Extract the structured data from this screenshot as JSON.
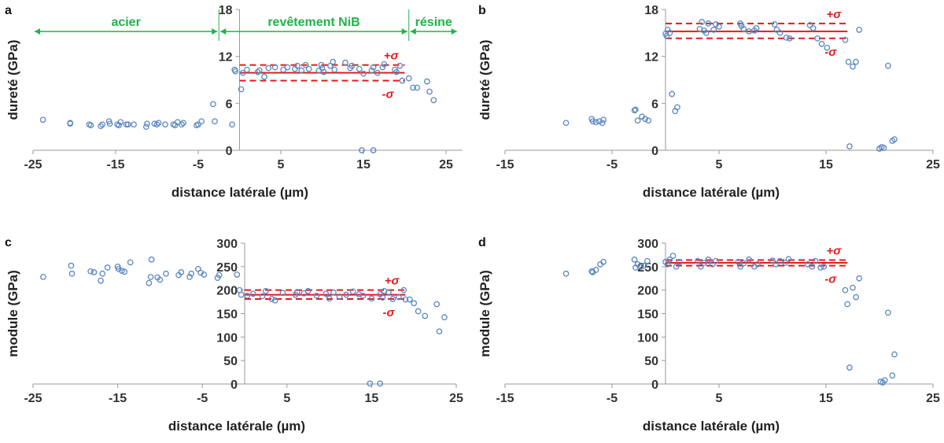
{
  "colors": {
    "points": "#5b87c0",
    "mean_line": "#e31a1c",
    "sigma_line": "#e31a1c",
    "sigma_text": "#e31a1c",
    "region": "#22b14c",
    "axis": "#9a9a9a"
  },
  "chart_data": [
    {
      "panel": "a",
      "type": "scatter",
      "xlabel": "distance latérale (µm)",
      "ylabel": "dureté (GPa)",
      "xlim": [
        -25,
        27
      ],
      "xticks": [
        -25,
        -15,
        -5,
        5,
        15,
        25
      ],
      "ylim": [
        0,
        18
      ],
      "yticks": [
        0,
        6,
        12,
        18
      ],
      "mean": 9.9,
      "plus_sigma": 10.9,
      "minus_sigma": 8.9,
      "band_x": [
        0,
        20
      ],
      "plus_label": "+σ",
      "minus_label": "-σ",
      "regions": [
        {
          "label": "acier",
          "from": -25,
          "to": -2.5
        },
        {
          "label": "revêtement NiB",
          "from": -2.5,
          "to": 20.5
        },
        {
          "label": "résine",
          "from": 20.5,
          "to": 26.5
        }
      ],
      "region_dividers": [
        -2.5,
        20.5
      ],
      "x": [
        -23.8,
        -20.5,
        -20.5,
        -18.2,
        -18.0,
        -16.8,
        -16.6,
        -15.8,
        -15.7,
        -14.8,
        -14.6,
        -14.4,
        -13.7,
        -13.5,
        -12.8,
        -11.3,
        -11.2,
        -10.3,
        -10.0,
        -9.8,
        -9.0,
        -8.0,
        -7.8,
        -7.5,
        -7.0,
        -6.8,
        -5.2,
        -5.0,
        -4.6,
        -3.2,
        -3.0,
        -0.9,
        -0.6,
        -0.5,
        0.2,
        0.4,
        0.9,
        2.2,
        2.4,
        3.0,
        3.5,
        4.3,
        5.3,
        5.8,
        6.7,
        7.0,
        7.5,
        8.0,
        8.4,
        9.6,
        9.9,
        10.0,
        10.2,
        11.0,
        11.3,
        11.5,
        12.8,
        13.4,
        13.6,
        14.5,
        15.0,
        16.0,
        16.2,
        16.7,
        17.3,
        17.5,
        18.8,
        19.0,
        19.4,
        19.7,
        20.5,
        21.0,
        21.5,
        22.7,
        23.0,
        23.5,
        14.8,
        16.2
      ],
      "y": [
        3.9,
        3.5,
        3.4,
        3.3,
        3.2,
        3.1,
        3.3,
        3.7,
        3.4,
        3.3,
        3.2,
        3.6,
        3.3,
        3.3,
        3.3,
        3.0,
        3.4,
        3.4,
        3.3,
        3.5,
        3.3,
        3.3,
        3.2,
        3.6,
        3.3,
        3.5,
        3.2,
        3.3,
        3.7,
        5.9,
        3.7,
        3.3,
        10.3,
        10.1,
        7.8,
        9.9,
        10.3,
        10.0,
        10.2,
        9.4,
        10.5,
        10.6,
        10.3,
        10.6,
        10.4,
        10.8,
        10.2,
        10.9,
        10.4,
        10.2,
        10.9,
        10.5,
        10.0,
        10.8,
        11.3,
        10.3,
        11.2,
        10.5,
        10.8,
        10.4,
        9.8,
        10.2,
        10.6,
        9.9,
        10.6,
        11.0,
        10.3,
        10.0,
        10.8,
        8.9,
        9.2,
        8.0,
        8.0,
        8.8,
        7.5,
        6.4,
        0.0,
        0.0
      ]
    },
    {
      "panel": "b",
      "type": "scatter",
      "xlabel": "distance latérale (µm)",
      "ylabel": "dureté (GPa)",
      "xlim": [
        -15,
        25
      ],
      "xticks": [
        -15,
        -5,
        5,
        15,
        25
      ],
      "ylim": [
        0,
        18
      ],
      "yticks": [
        0,
        6,
        12,
        18
      ],
      "mean": 15.2,
      "plus_sigma": 16.2,
      "minus_sigma": 14.3,
      "band_x": [
        0,
        17
      ],
      "plus_label": "+σ",
      "minus_label": "-σ",
      "x": [
        -9.3,
        -6.9,
        -6.8,
        -6.5,
        -6.2,
        -5.9,
        -5.8,
        -2.9,
        -2.8,
        -2.6,
        -2.2,
        -1.9,
        -1.6,
        0.0,
        0.1,
        0.2,
        0.4,
        0.6,
        0.9,
        1.1,
        3.2,
        3.4,
        3.6,
        3.8,
        4.0,
        4.5,
        4.7,
        5.0,
        7.0,
        7.1,
        7.3,
        7.8,
        8.3,
        8.5,
        10.2,
        10.4,
        10.7,
        11.3,
        11.6,
        13.5,
        13.8,
        14.2,
        14.6,
        15.1,
        16.8,
        17.1,
        17.2,
        17.5,
        17.8,
        18.1,
        20.0,
        20.2,
        20.4,
        20.8,
        21.2,
        21.4
      ],
      "y": [
        3.5,
        4.0,
        3.7,
        3.6,
        3.7,
        3.5,
        3.9,
        5.1,
        5.2,
        3.8,
        4.3,
        4.0,
        3.8,
        14.9,
        14.6,
        15.4,
        15.0,
        7.2,
        5.0,
        5.5,
        15.5,
        16.4,
        15.3,
        15.0,
        16.2,
        15.4,
        16.1,
        15.8,
        16.2,
        15.9,
        15.5,
        15.2,
        15.3,
        15.6,
        16.1,
        15.4,
        15.0,
        14.4,
        14.3,
        16.0,
        15.6,
        14.3,
        13.6,
        13.1,
        14.1,
        11.3,
        0.5,
        10.7,
        11.3,
        15.4,
        0.2,
        0.4,
        0.3,
        10.8,
        1.2,
        1.4
      ]
    },
    {
      "panel": "c",
      "type": "scatter",
      "xlabel": "distance latérale (µm)",
      "ylabel": "module (GPa)",
      "xlim": [
        -25,
        25
      ],
      "xticks": [
        -25,
        -15,
        -5,
        5,
        15,
        25
      ],
      "ylim": [
        0,
        300
      ],
      "yticks": [
        0,
        50,
        100,
        150,
        200,
        250,
        300
      ],
      "mean": 190,
      "plus_sigma": 200,
      "minus_sigma": 181,
      "band_x": [
        0,
        19
      ],
      "plus_label": "+σ",
      "minus_label": "-σ",
      "x": [
        -23.8,
        -20.5,
        -20.4,
        -18.2,
        -17.8,
        -17.0,
        -16.8,
        -16.2,
        -15.0,
        -14.9,
        -14.5,
        -14.2,
        -13.5,
        -11.3,
        -11.1,
        -11.0,
        -10.3,
        -10.0,
        -9.3,
        -7.8,
        -7.5,
        -6.5,
        -6.3,
        -5.5,
        -5.2,
        -4.8,
        -3.2,
        -3.0,
        -0.9,
        -0.6,
        -0.4,
        0.3,
        1.0,
        2.1,
        2.5,
        3.2,
        3.6,
        4.5,
        6.0,
        6.2,
        7.0,
        7.5,
        8.5,
        9.6,
        10.0,
        10.5,
        11.2,
        12.0,
        12.8,
        13.5,
        14.0,
        15.0,
        16.0,
        16.3,
        16.5,
        17.0,
        17.5,
        18.2,
        18.8,
        19.0,
        19.5,
        20.0,
        20.5,
        21.3,
        22.7,
        23.0,
        23.6,
        14.8,
        16.0
      ],
      "y": [
        228,
        252,
        235,
        240,
        238,
        220,
        235,
        248,
        250,
        245,
        241,
        239,
        259,
        215,
        228,
        265,
        227,
        222,
        235,
        232,
        238,
        228,
        235,
        245,
        237,
        233,
        226,
        232,
        233,
        200,
        190,
        188,
        192,
        187,
        198,
        181,
        178,
        194,
        190,
        196,
        193,
        198,
        188,
        192,
        182,
        195,
        186,
        190,
        197,
        191,
        188,
        182,
        191,
        184,
        198,
        195,
        181,
        185,
        200,
        180,
        180,
        172,
        155,
        145,
        170,
        112,
        142,
        1,
        1
      ]
    },
    {
      "panel": "d",
      "type": "scatter",
      "xlabel": "distance latérale (µm)",
      "ylabel": "module (GPa)",
      "xlim": [
        -15,
        25
      ],
      "xticks": [
        -15,
        -5,
        5,
        15,
        25
      ],
      "ylim": [
        0,
        300
      ],
      "yticks": [
        0,
        50,
        100,
        150,
        200,
        250,
        300
      ],
      "mean": 258,
      "plus_sigma": 264,
      "minus_sigma": 252,
      "band_x": [
        0,
        17
      ],
      "plus_label": "+σ",
      "minus_label": "-σ",
      "x": [
        -9.3,
        -6.9,
        -6.8,
        -6.5,
        -6.1,
        -5.8,
        -2.9,
        -2.8,
        -2.6,
        -2.3,
        -2.0,
        -1.7,
        0.0,
        0.2,
        0.4,
        0.7,
        1.0,
        1.3,
        3.0,
        3.3,
        3.6,
        4.0,
        4.4,
        4.7,
        6.8,
        7.0,
        7.3,
        7.8,
        8.3,
        8.6,
        10.0,
        10.3,
        10.7,
        11.2,
        11.5,
        13.3,
        13.7,
        14.0,
        14.5,
        14.8,
        16.8,
        17.0,
        17.2,
        17.5,
        17.8,
        18.1,
        20.1,
        20.3,
        20.5,
        20.8,
        21.2,
        21.4
      ],
      "y": [
        235,
        240,
        238,
        243,
        255,
        260,
        265,
        248,
        255,
        250,
        252,
        262,
        260,
        255,
        265,
        273,
        250,
        260,
        262,
        250,
        258,
        265,
        255,
        262,
        260,
        250,
        257,
        265,
        250,
        255,
        263,
        255,
        262,
        258,
        266,
        255,
        250,
        262,
        248,
        250,
        200,
        170,
        35,
        205,
        185,
        225,
        5,
        3,
        8,
        152,
        18,
        63
      ]
    }
  ]
}
